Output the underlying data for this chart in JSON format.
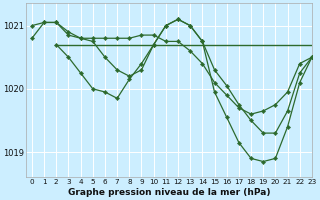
{
  "background_color": "#cceeff",
  "grid_color": "#ffffff",
  "line_color": "#2d6a2d",
  "xlabel": "Graphe pression niveau de la mer (hPa)",
  "xlim": [
    -0.5,
    23
  ],
  "ylim": [
    1018.6,
    1021.35
  ],
  "yticks": [
    1019,
    1020,
    1021
  ],
  "xticks": [
    0,
    1,
    2,
    3,
    4,
    5,
    6,
    7,
    8,
    9,
    10,
    11,
    12,
    13,
    14,
    15,
    16,
    17,
    18,
    19,
    20,
    21,
    22,
    23
  ],
  "series": [
    {
      "x": [
        0,
        1,
        2,
        3,
        4,
        5,
        6,
        7,
        8,
        9,
        10,
        11,
        12,
        13,
        14,
        15,
        16,
        17,
        18,
        19,
        20,
        21,
        22,
        23
      ],
      "y": [
        1020.8,
        1021.05,
        1021.05,
        1020.85,
        1020.8,
        1020.8,
        1020.8,
        1020.8,
        1020.8,
        1020.85,
        1020.85,
        1020.75,
        1020.75,
        1020.6,
        1020.4,
        1020.1,
        1019.9,
        1019.7,
        1019.6,
        1019.65,
        1019.75,
        1019.95,
        1020.4,
        1020.5
      ],
      "marker": true
    },
    {
      "x": [
        0,
        1,
        2,
        3,
        4,
        5,
        6,
        7,
        8,
        9,
        10,
        11,
        12,
        13,
        14,
        15,
        16,
        17,
        18,
        19,
        20,
        21,
        22,
        23
      ],
      "y": [
        1021.0,
        1021.05,
        1021.05,
        1020.9,
        1020.8,
        1020.75,
        1020.5,
        1020.3,
        1020.2,
        1020.3,
        1020.7,
        1021.0,
        1021.1,
        1021.0,
        1020.75,
        1020.3,
        1020.05,
        1019.75,
        1019.5,
        1019.3,
        1019.3,
        1019.65,
        1020.25,
        1020.5
      ],
      "marker": true
    },
    {
      "x": [
        2,
        3,
        4,
        5,
        6,
        7,
        8,
        9,
        10,
        11,
        12,
        13,
        14,
        15,
        16,
        17,
        18,
        19,
        20,
        21,
        22,
        23
      ],
      "y": [
        1020.7,
        1020.5,
        1020.25,
        1020.0,
        1019.95,
        1019.85,
        1020.15,
        1020.4,
        1020.7,
        1021.0,
        1021.1,
        1021.0,
        1020.75,
        1019.95,
        1019.55,
        1019.15,
        1018.9,
        1018.85,
        1018.9,
        1019.4,
        1020.1,
        1020.5
      ],
      "marker": true
    },
    {
      "x": [
        2,
        23
      ],
      "y": [
        1020.7,
        1020.7
      ],
      "marker": false
    }
  ]
}
